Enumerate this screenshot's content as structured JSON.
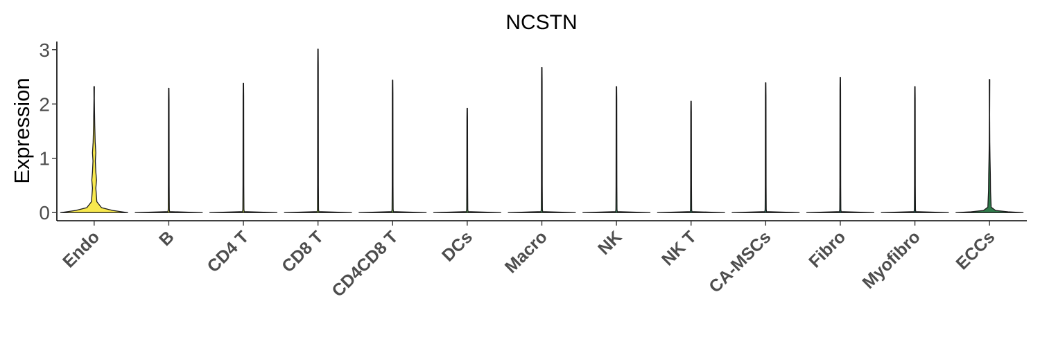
{
  "chart_data": {
    "type": "violin",
    "title": "NCSTN",
    "xlabel": "",
    "ylabel": "Expression",
    "ylim": [
      -0.15,
      3.15
    ],
    "yticks": [
      0,
      1,
      2,
      3
    ],
    "grid": false,
    "legend": "none",
    "categories": [
      "Endo",
      "B",
      "CD4 T",
      "CD8 T",
      "CD4CD8 T",
      "DCs",
      "Macro",
      "NK",
      "NK T",
      "CA-MSCs",
      "Fibro",
      "Myofibro",
      "ECCs"
    ],
    "series": [
      {
        "category": "Endo",
        "min": 0,
        "max": 2.32,
        "color": "#f8e94e"
      },
      {
        "category": "B",
        "min": 0,
        "max": 2.29,
        "color": "#e4e748"
      },
      {
        "category": "CD4 T",
        "min": 0,
        "max": 2.38,
        "color": "#c8e04a"
      },
      {
        "category": "CD8 T",
        "min": 0,
        "max": 3.01,
        "color": "#a6d94a"
      },
      {
        "category": "CD4CD8 T",
        "min": 0,
        "max": 2.44,
        "color": "#86cf52"
      },
      {
        "category": "DCs",
        "min": 0,
        "max": 1.92,
        "color": "#66c35c"
      },
      {
        "category": "Macro",
        "min": 0,
        "max": 2.67,
        "color": "#4db564"
      },
      {
        "category": "NK",
        "min": 0,
        "max": 2.32,
        "color": "#3aa66a"
      },
      {
        "category": "NK T",
        "min": 0,
        "max": 2.05,
        "color": "#2f966d"
      },
      {
        "category": "CA-MSCs",
        "min": 0,
        "max": 2.39,
        "color": "#28876b"
      },
      {
        "category": "Fibro",
        "min": 0,
        "max": 2.49,
        "color": "#237866"
      },
      {
        "category": "Myofibro",
        "min": 0,
        "max": 2.32,
        "color": "#1f6a5f"
      },
      {
        "category": "ECCs",
        "min": 0,
        "max": 2.45,
        "color": "#2f7a4a"
      }
    ]
  }
}
